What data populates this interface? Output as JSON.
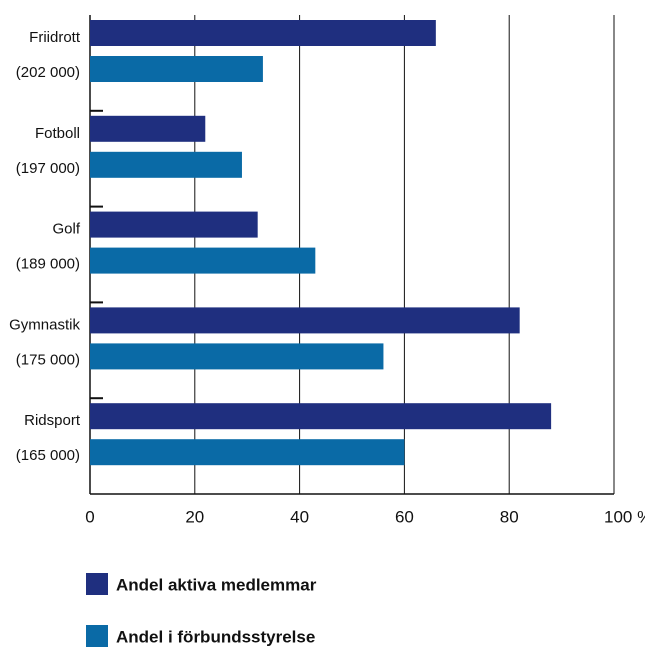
{
  "chart_data": {
    "type": "hbar",
    "categories": [
      [
        "Friidrott",
        "(202 000)"
      ],
      [
        "Fotboll",
        "(197 000)"
      ],
      [
        "Golf",
        "(189 000)"
      ],
      [
        "Gymnastik",
        "(175 000)"
      ],
      [
        "Ridsport",
        "(165 000)"
      ]
    ],
    "series": [
      {
        "name": "Andel aktiva medlemmar",
        "color": "#1f2f7f",
        "values": [
          66,
          22,
          32,
          82,
          88
        ]
      },
      {
        "name": "Andel i förbundsstyrelse",
        "color": "#0a6aa6",
        "values": [
          33,
          29,
          43,
          56,
          60
        ]
      }
    ],
    "xlim": [
      0,
      100
    ],
    "xticks": [
      0,
      20,
      40,
      60,
      80,
      {
        "value": 100,
        "label": "100 %"
      }
    ],
    "grid": true,
    "legend": "bottom"
  }
}
